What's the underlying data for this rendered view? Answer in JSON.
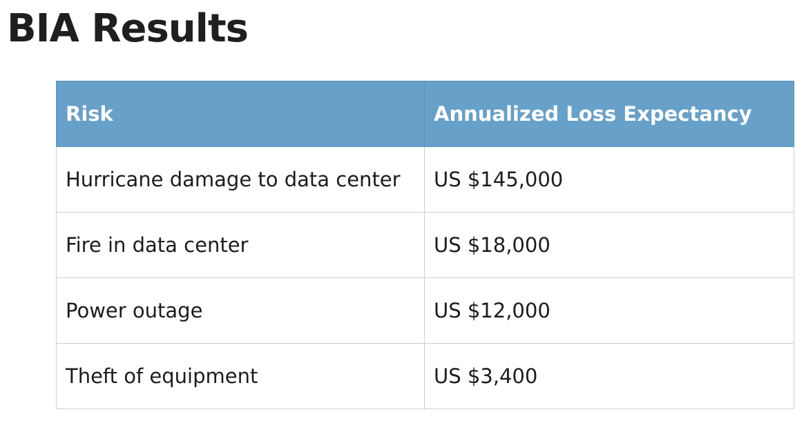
{
  "page": {
    "title": "BIA Results"
  },
  "table": {
    "headers": [
      "Risk",
      "Annualized Loss Expectancy"
    ],
    "rows": [
      [
        "Hurricane damage to data center",
        "US $145,000"
      ],
      [
        "Fire in data center",
        "US $18,000"
      ],
      [
        "Power outage",
        "US $12,000"
      ],
      [
        "Theft of equipment",
        "US $3,400"
      ]
    ]
  },
  "colors": {
    "header_background": "#67a0c9",
    "header_text": "#ffffff",
    "body_text": "#1c1c1c",
    "border": "#cfcfcf"
  }
}
